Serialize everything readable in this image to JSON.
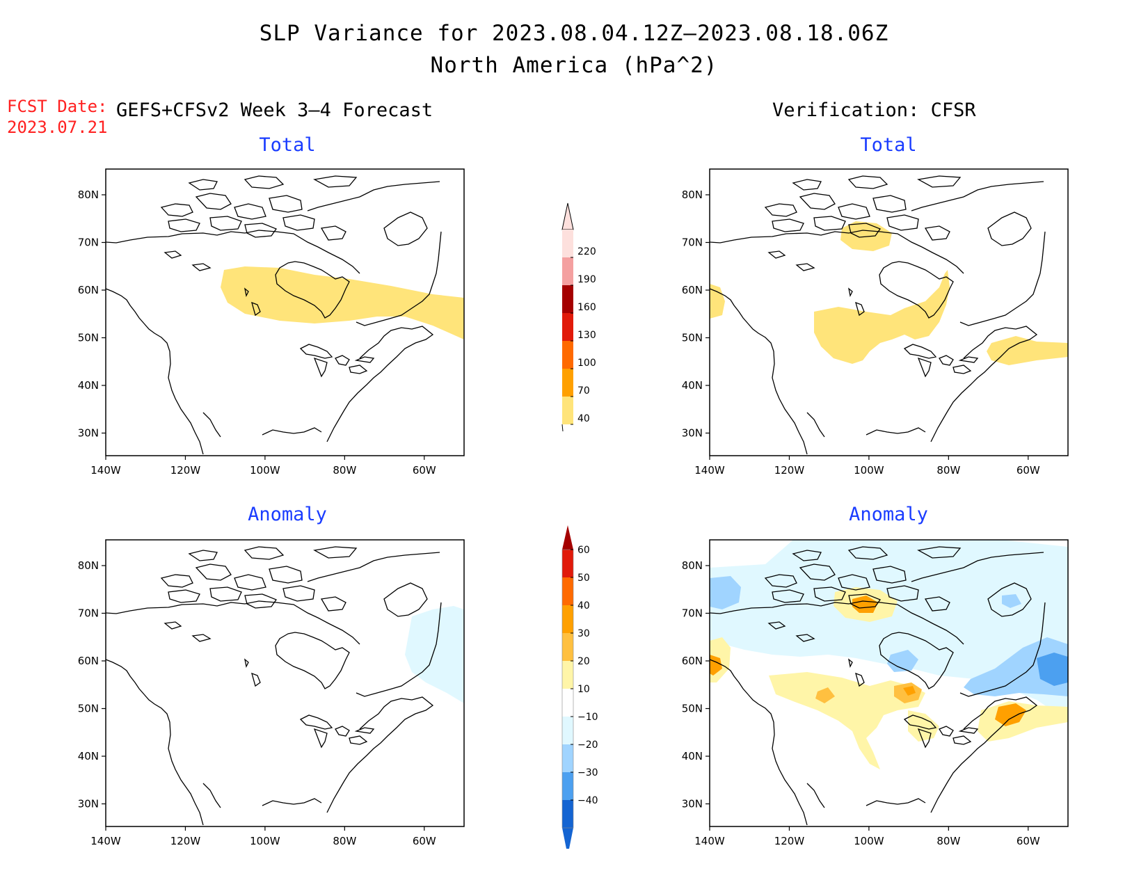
{
  "header": {
    "title_line1": "SLP Variance for 2023.08.04.12Z–2023.08.18.06Z",
    "title_line2": "North America (hPa^2)",
    "fcst_label": "FCST Date:",
    "fcst_date": "2023.07.21",
    "forecast_heading": "GEFS+CFSv2 Week 3–4 Forecast",
    "verification_heading": "Verification: CFSR"
  },
  "panels": {
    "forecast_total_title": "Total",
    "forecast_anomaly_title": "Anomaly",
    "verification_total_title": "Total",
    "verification_anomaly_title": "Anomaly"
  },
  "axes": {
    "lon_ticks": [
      "140W",
      "120W",
      "100W",
      "80W",
      "60W"
    ],
    "lat_ticks": [
      "80N",
      "70N",
      "60N",
      "50N",
      "40N",
      "30N"
    ]
  },
  "colorbars": {
    "total": {
      "labels": [
        "220",
        "190",
        "160",
        "130",
        "100",
        "70",
        "40"
      ],
      "colors": [
        "#fde0dd",
        "#f4a0a0",
        "#a50000",
        "#e11a0a",
        "#ff6a00",
        "#ffa000",
        "#ffe47a"
      ]
    },
    "anomaly": {
      "labels": [
        "60",
        "50",
        "40",
        "30",
        "20",
        "10",
        "−10",
        "−20",
        "−30",
        "−40"
      ],
      "colors": [
        "#a50000",
        "#e11a0a",
        "#ff6a00",
        "#ffa000",
        "#ffc040",
        "#fff5a8",
        "#ffffff",
        "#e0f8ff",
        "#a0d4ff",
        "#4ca0f0",
        "#1464d2"
      ]
    }
  }
}
